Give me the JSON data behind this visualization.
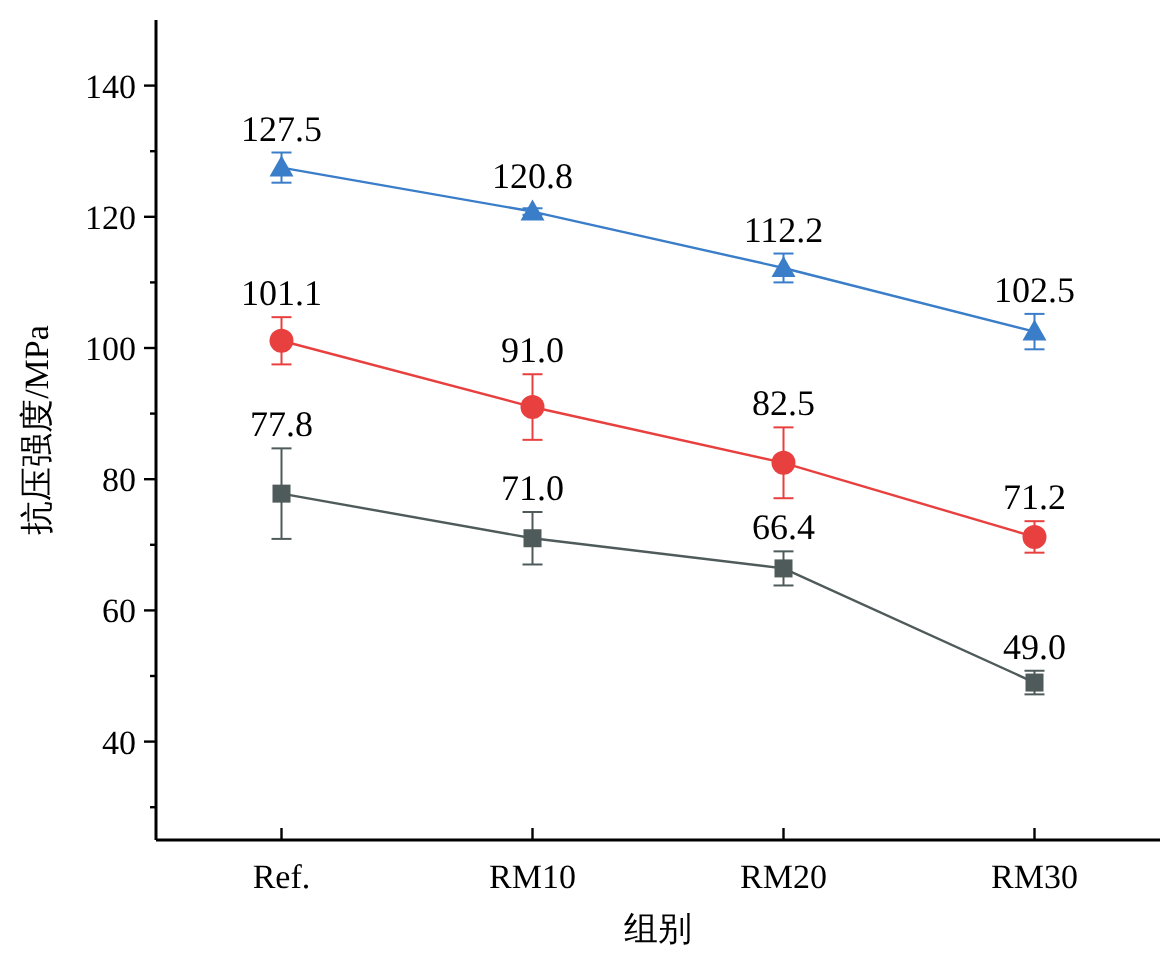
{
  "chart_data": {
    "type": "line",
    "xlabel": "组别",
    "ylabel": "抗压强度/MPa",
    "categories": [
      "Ref.",
      "RM10",
      "RM20",
      "RM30"
    ],
    "ylim": [
      25,
      150
    ],
    "yticks": [
      {
        "value": 30,
        "label": null
      },
      40,
      {
        "value": 50,
        "label": null
      },
      60,
      {
        "value": 70,
        "label": null
      },
      80,
      {
        "value": 90,
        "label": null
      },
      100,
      {
        "value": 110,
        "label": null
      },
      120,
      {
        "value": 130,
        "label": null
      },
      140
    ],
    "grid": false,
    "line_style": "solid",
    "series": [
      {
        "color": "#3a7dc9",
        "marker": "triangle",
        "values": [
          127.5,
          120.8,
          112.2,
          102.5
        ],
        "value_labels": [
          "127.5",
          "120.8",
          "112.2",
          "102.5"
        ],
        "errors": [
          2.3,
          0.5,
          2.2,
          2.7
        ]
      },
      {
        "color": "#e8403f",
        "marker": "circle",
        "values": [
          101.1,
          91.0,
          82.5,
          71.2
        ],
        "value_labels": [
          "101.1",
          "91.0",
          "82.5",
          "71.2"
        ],
        "errors": [
          3.6,
          5.0,
          5.4,
          2.4
        ]
      },
      {
        "color": "#4f5a5a",
        "marker": "square",
        "values": [
          77.8,
          71.0,
          66.4,
          49.0
        ],
        "value_labels": [
          "77.8",
          "71.0",
          "66.4",
          "49.0"
        ],
        "errors": [
          6.9,
          4.0,
          2.6,
          1.8
        ]
      }
    ]
  }
}
